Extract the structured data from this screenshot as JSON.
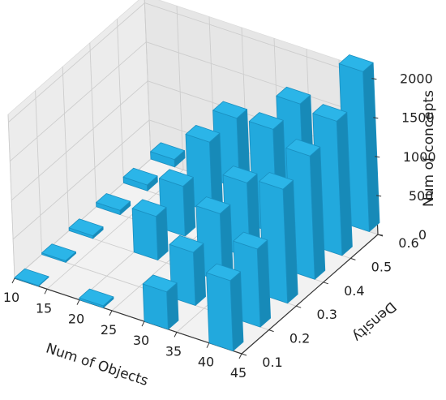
{
  "chart_data": {
    "type": "bar3d",
    "xlabel": "Num of Objects",
    "ylabel": "Density",
    "zlabel": "Num of concepts",
    "x_ticks": [
      "10",
      "15",
      "20",
      "25",
      "30",
      "35",
      "40",
      "45"
    ],
    "y_ticks": [
      "0.1",
      "0.2",
      "0.3",
      "0.4",
      "0.5",
      "0.6"
    ],
    "z_ticks": [
      "0",
      "500",
      "1000",
      "1500",
      "2000"
    ],
    "x_range": [
      10,
      45
    ],
    "y_range": [
      0.1,
      0.6
    ],
    "z_range": [
      0,
      2100
    ],
    "grid": true,
    "bar_color": "#2bb5e8",
    "bars": [
      {
        "x": 10,
        "y": 0.1,
        "z": 5
      },
      {
        "x": 10,
        "y": 0.2,
        "z": 20
      },
      {
        "x": 10,
        "y": 0.3,
        "z": 35
      },
      {
        "x": 10,
        "y": 0.4,
        "z": 55
      },
      {
        "x": 10,
        "y": 0.5,
        "z": 75
      },
      {
        "x": 10,
        "y": 0.6,
        "z": 95
      },
      {
        "x": 20,
        "y": 0.1,
        "z": 25
      },
      {
        "x": 20,
        "y": 0.3,
        "z": 560
      },
      {
        "x": 20,
        "y": 0.4,
        "z": 640
      },
      {
        "x": 20,
        "y": 0.5,
        "z": 900
      },
      {
        "x": 20,
        "y": 0.6,
        "z": 900
      },
      {
        "x": 30,
        "y": 0.1,
        "z": 480
      },
      {
        "x": 30,
        "y": 0.2,
        "z": 680
      },
      {
        "x": 30,
        "y": 0.3,
        "z": 870
      },
      {
        "x": 30,
        "y": 0.4,
        "z": 960
      },
      {
        "x": 30,
        "y": 0.5,
        "z": 1340
      },
      {
        "x": 30,
        "y": 0.6,
        "z": 1360
      },
      {
        "x": 40,
        "y": 0.1,
        "z": 900
      },
      {
        "x": 40,
        "y": 0.2,
        "z": 1000
      },
      {
        "x": 40,
        "y": 0.3,
        "z": 1460
      },
      {
        "x": 40,
        "y": 0.4,
        "z": 1580
      },
      {
        "x": 40,
        "y": 0.5,
        "z": 1720
      },
      {
        "x": 40,
        "y": 0.6,
        "z": 2050
      }
    ]
  }
}
